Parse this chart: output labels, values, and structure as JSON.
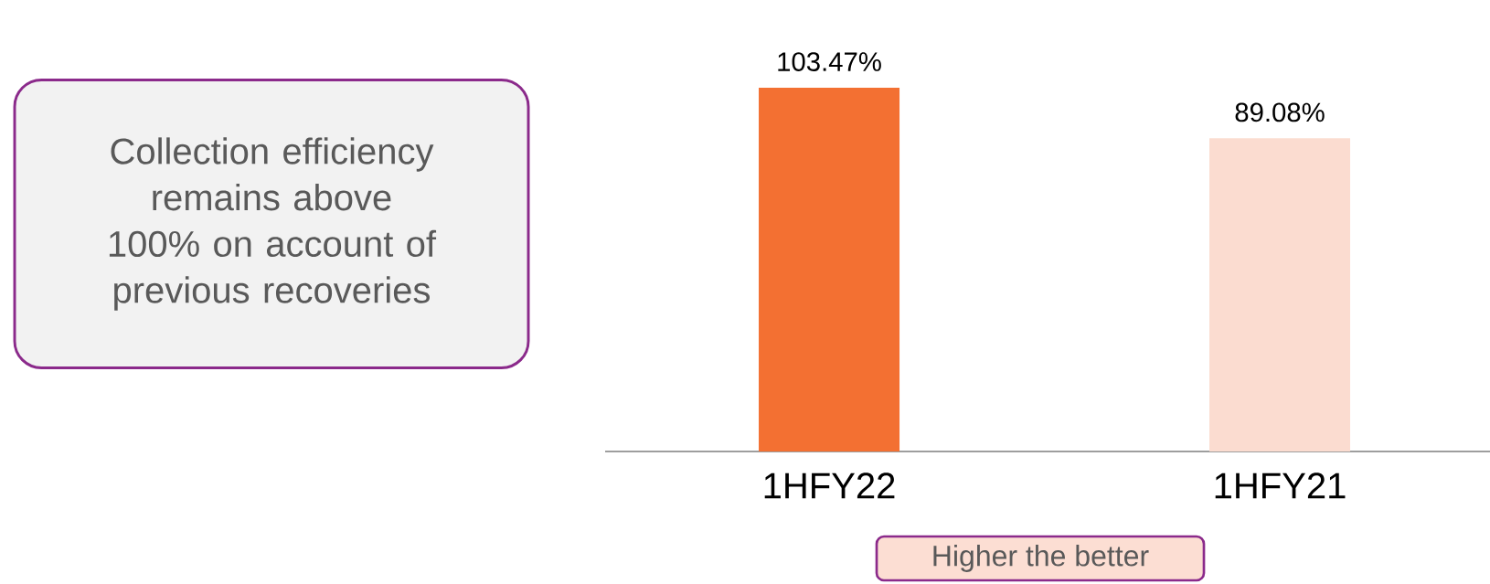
{
  "chart_data": {
    "type": "bar",
    "categories": [
      "1HFY22",
      "1HFY21"
    ],
    "values": [
      103.47,
      89.08
    ],
    "colors": [
      "#f37032",
      "#fbdcd0"
    ],
    "value_labels": [
      "103.47%",
      "89.08%"
    ],
    "annotations": [
      "Collection efficiency remains above 100% on account of previous recoveries",
      "Higher the better"
    ]
  }
}
